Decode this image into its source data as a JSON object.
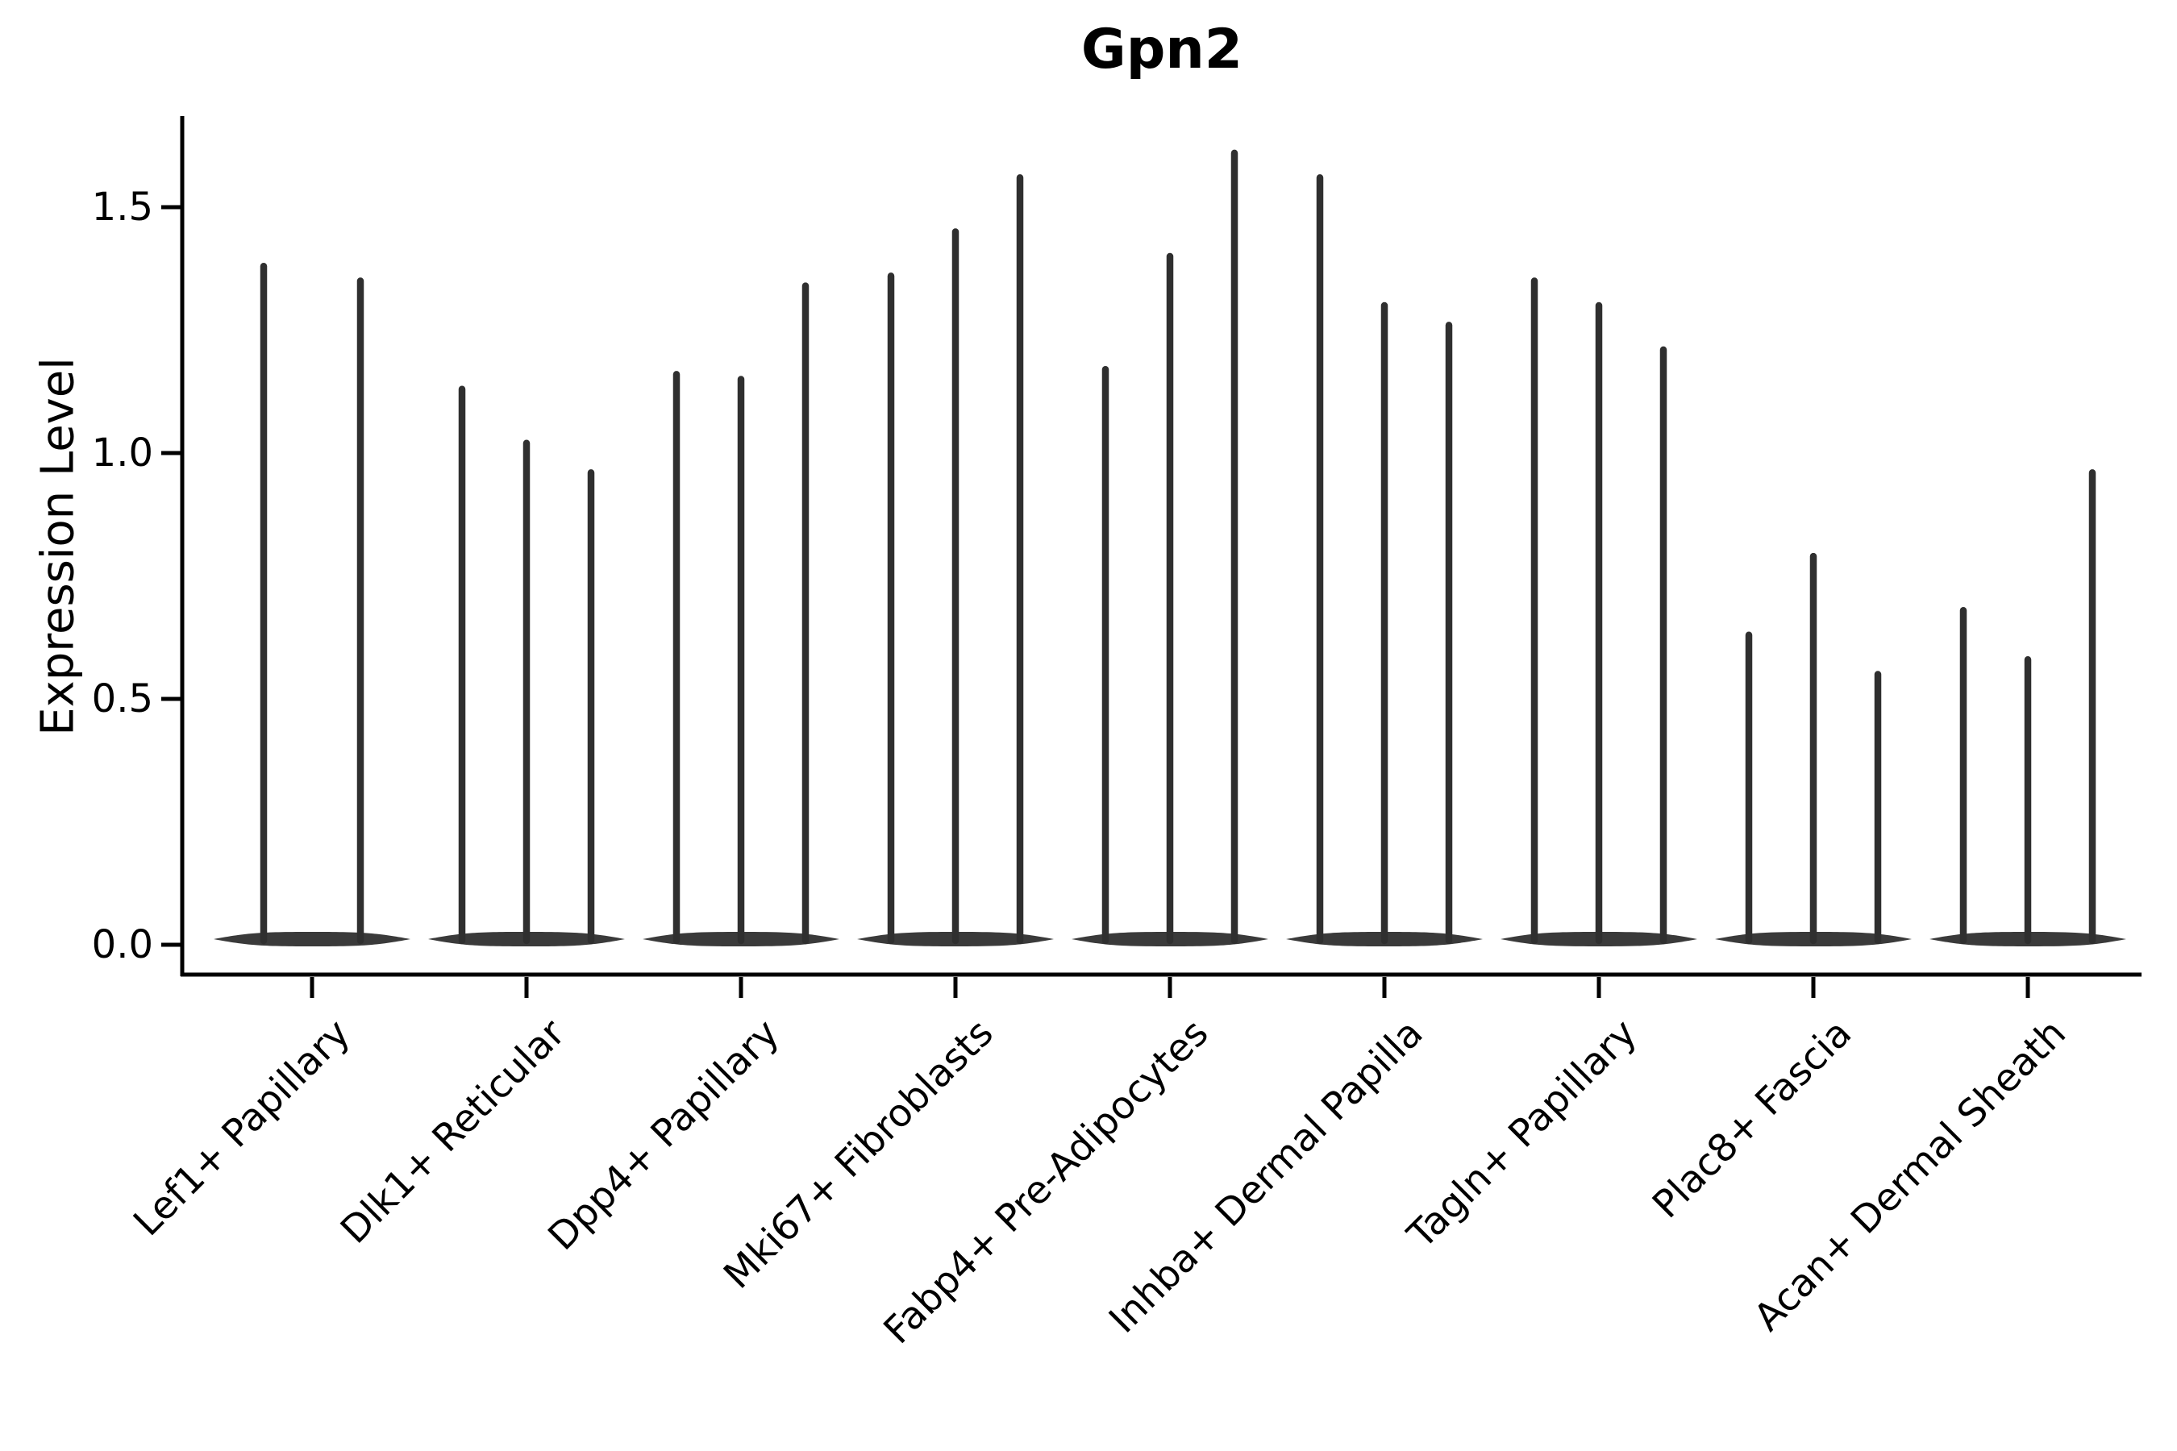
{
  "figure": {
    "background_color": "#ffffff",
    "ink_color": "#2f2f2f",
    "axis_color": "#000000"
  },
  "chart_data": {
    "type": "violin",
    "title": "Gpn2",
    "xlabel": "",
    "ylabel": "Expression Level",
    "ylim": [
      -0.07,
      1.7
    ],
    "yticks": [
      0.0,
      0.5,
      1.0,
      1.5
    ],
    "ytick_labels": [
      "0.0",
      "0.5",
      "1.0",
      "1.5"
    ],
    "x_tick_label_rotation_deg": 45,
    "grid": false,
    "legend_position": "none",
    "categories": [
      "Lef1+ Papillary",
      "Dlk1+ Reticular",
      "Dpp4+ Papillary",
      "Mki67+ Fibroblasts",
      "Fabp4+ Pre-Adipocytes",
      "Inhba+ Dermal Papilla",
      "Tagln+ Papillary",
      "Plac8+ Fascia",
      "Acan+ Dermal Sheath"
    ],
    "groups": [
      {
        "label": "Lef1+ Papillary",
        "violin_max_expression": [
          1.38,
          1.35
        ]
      },
      {
        "label": "Dlk1+ Reticular",
        "violin_max_expression": [
          1.13,
          1.02,
          0.96
        ]
      },
      {
        "label": "Dpp4+ Papillary",
        "violin_max_expression": [
          1.16,
          1.15,
          1.34
        ]
      },
      {
        "label": "Mki67+ Fibroblasts",
        "violin_max_expression": [
          1.36,
          1.45,
          1.56
        ]
      },
      {
        "label": "Fabp4+ Pre-Adipocytes",
        "violin_max_expression": [
          1.17,
          1.4,
          1.61
        ]
      },
      {
        "label": "Inhba+ Dermal Papilla",
        "violin_max_expression": [
          1.56,
          1.3,
          1.26
        ]
      },
      {
        "label": "Tagln+ Papillary",
        "violin_max_expression": [
          1.35,
          1.3,
          1.21
        ]
      },
      {
        "label": "Plac8+ Fascia",
        "violin_max_expression": [
          0.63,
          0.79,
          0.55
        ]
      },
      {
        "label": "Acan+ Dermal Sheath",
        "violin_max_expression": [
          0.68,
          0.58,
          0.96
        ]
      }
    ],
    "violin_body_value": 0.0
  }
}
